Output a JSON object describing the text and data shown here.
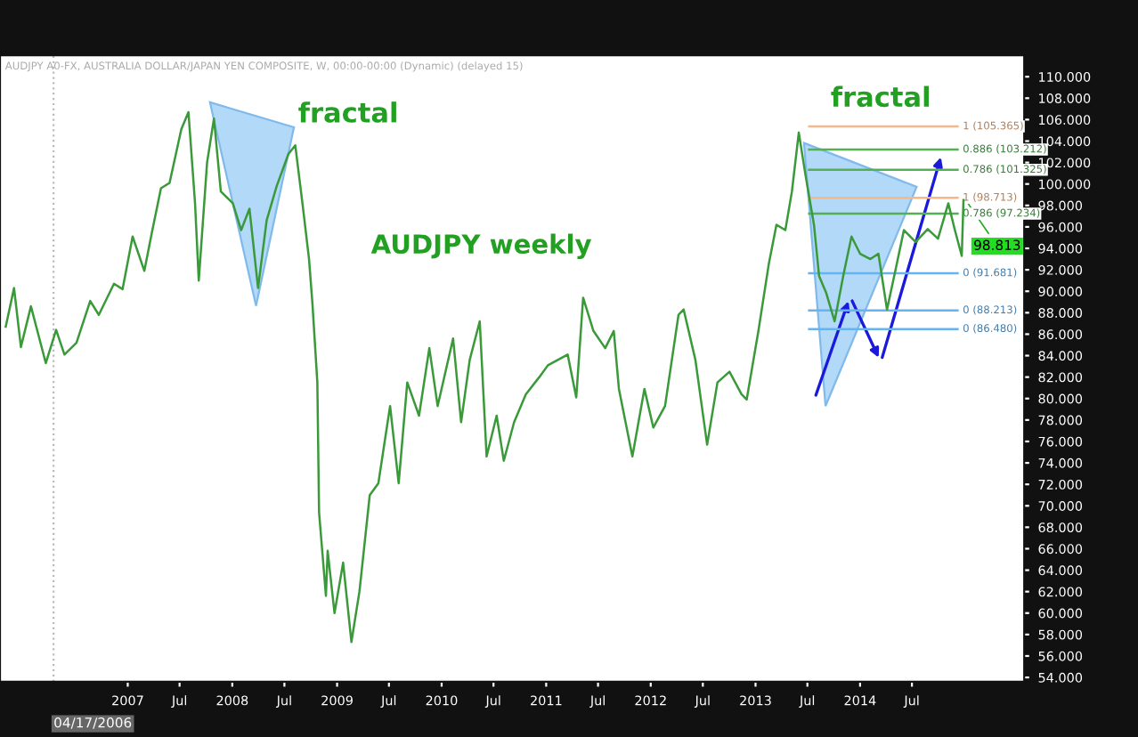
{
  "chart_data": {
    "type": "line",
    "title": "AUDJPY weekly",
    "subtitle": "AUDJPY A0-FX, AUSTRALIA DOLLAR/JAPAN YEN COMPOSITE, W, 00:00-00:00 (Dynamic) (delayed 15)",
    "annotations": [
      "fractal",
      "fractal",
      {
        "text": "98.813",
        "x": "2014-12-28",
        "y": 98.813
      }
    ],
    "x": [
      "2005-11-01",
      "2005-11-30",
      "2005-12-24",
      "2006-01-28",
      "2006-03-21",
      "2006-04-26",
      "2006-05-25",
      "2006-07-06",
      "2006-08-23",
      "2006-09-22",
      "2006-11-14",
      "2006-12-14",
      "2007-01-18",
      "2007-02-28",
      "2007-03-28",
      "2007-04-27",
      "2007-05-27",
      "2007-07-07",
      "2007-08-01",
      "2007-08-24",
      "2007-09-06",
      "2007-10-05",
      "2007-10-29",
      "2007-11-22",
      "2008-01-03",
      "2008-02-01",
      "2008-03-01",
      "2008-03-31",
      "2008-04-30",
      "2008-06-04",
      "2008-07-15",
      "2008-08-08",
      "2008-09-02",
      "2008-09-25",
      "2008-10-07",
      "2008-10-24",
      "2008-10-30",
      "2008-11-23",
      "2008-11-29",
      "2008-12-23",
      "2009-01-22",
      "2009-02-20",
      "2009-03-20",
      "2009-04-25",
      "2009-05-25",
      "2009-07-05",
      "2009-08-04",
      "2009-09-03",
      "2009-10-14",
      "2009-11-19",
      "2009-12-18",
      "2010-02-10",
      "2010-03-10",
      "2010-04-09",
      "2010-05-14",
      "2010-06-07",
      "2010-07-12",
      "2010-08-06",
      "2010-09-11",
      "2010-10-22",
      "2010-12-08",
      "2011-01-07",
      "2011-03-17",
      "2011-04-16",
      "2011-05-10",
      "2011-06-15",
      "2011-07-26",
      "2011-08-25",
      "2011-09-12",
      "2011-10-29",
      "2011-12-10",
      "2012-01-10",
      "2012-02-20",
      "2012-04-07",
      "2012-04-25",
      "2012-06-05",
      "2012-07-16",
      "2012-08-21",
      "2012-10-02",
      "2012-11-13",
      "2012-12-01",
      "2013-01-11",
      "2013-02-16",
      "2013-03-15",
      "2013-04-15",
      "2013-05-08",
      "2013-06-01",
      "2013-06-24",
      "2013-07-24",
      "2013-08-11",
      "2013-09-04",
      "2013-10-04",
      "2013-11-03",
      "2013-12-02",
      "2014-01-01",
      "2014-02-06",
      "2014-03-06",
      "2014-04-05",
      "2014-05-04",
      "2014-06-03",
      "2014-07-14",
      "2014-08-25",
      "2014-09-30",
      "2014-11-05",
      "2014-11-28",
      "2014-12-22",
      "2014-12-28"
    ],
    "series": [
      {
        "color": "#3a9a3a",
        "values": [
          86.7,
          90.3,
          84.8,
          88.6,
          83.3,
          86.4,
          84.1,
          85.2,
          89.1,
          87.8,
          90.7,
          90.2,
          95.1,
          91.9,
          95.7,
          99.6,
          100.1,
          105.1,
          106.7,
          98.2,
          91.0,
          102.0,
          106.1,
          99.3,
          98.2,
          95.7,
          97.7,
          90.3,
          96.6,
          99.8,
          102.8,
          103.6,
          98.2,
          93.0,
          88.8,
          81.5,
          69.4,
          61.6,
          65.8,
          60.0,
          64.7,
          57.3,
          62.0,
          71.0,
          72.1,
          79.3,
          72.1,
          81.5,
          78.4,
          84.7,
          79.3,
          85.6,
          77.8,
          83.6,
          87.2,
          74.6,
          78.4,
          74.2,
          77.8,
          80.4,
          82.0,
          83.1,
          84.1,
          80.1,
          89.4,
          86.3,
          84.7,
          86.3,
          80.9,
          74.6,
          80.9,
          77.3,
          79.3,
          87.8,
          88.3,
          83.6,
          75.7,
          81.5,
          82.5,
          80.4,
          79.9,
          86.3,
          92.5,
          96.2,
          95.7,
          99.3,
          104.8,
          100.9,
          96.2,
          91.4,
          89.9,
          87.2,
          91.4,
          95.1,
          93.5,
          93.0,
          93.5,
          88.3,
          91.9,
          95.7,
          94.6,
          95.8,
          94.9,
          98.2,
          95.7,
          93.3,
          98.5
        ]
      }
    ],
    "xlim": [
      "2005-10-12",
      "2015-07-28"
    ],
    "xticks": [
      {
        "value": "2007-01-01",
        "label": "2007"
      },
      {
        "value": "2007-07-01",
        "label": "Jul"
      },
      {
        "value": "2008-01-01",
        "label": "2008"
      },
      {
        "value": "2008-07-01",
        "label": "Jul"
      },
      {
        "value": "2009-01-01",
        "label": "2009"
      },
      {
        "value": "2009-07-01",
        "label": "Jul"
      },
      {
        "value": "2010-01-01",
        "label": "2010"
      },
      {
        "value": "2010-07-01",
        "label": "Jul"
      },
      {
        "value": "2011-01-01",
        "label": "2011"
      },
      {
        "value": "2011-07-01",
        "label": "Jul"
      },
      {
        "value": "2012-01-01",
        "label": "2012"
      },
      {
        "value": "2012-07-01",
        "label": "Jul"
      },
      {
        "value": "2013-01-01",
        "label": "2013"
      },
      {
        "value": "2013-07-01",
        "label": "Jul"
      },
      {
        "value": "2014-01-01",
        "label": "2014"
      },
      {
        "value": "2014-07-01",
        "label": "Jul"
      }
    ],
    "ylim": [
      53.6,
      112
    ],
    "yticks": [
      {
        "value": 54,
        "label": "54.000"
      },
      {
        "value": 56,
        "label": "56.000"
      },
      {
        "value": 58,
        "label": "58.000"
      },
      {
        "value": 60,
        "label": "60.000"
      },
      {
        "value": 62,
        "label": "62.000"
      },
      {
        "value": 64,
        "label": "64.000"
      },
      {
        "value": 66,
        "label": "66.000"
      },
      {
        "value": 68,
        "label": "68.000"
      },
      {
        "value": 70,
        "label": "70.000"
      },
      {
        "value": 72,
        "label": "72.000"
      },
      {
        "value": 74,
        "label": "74.000"
      },
      {
        "value": 76,
        "label": "76.000"
      },
      {
        "value": 78,
        "label": "78.000"
      },
      {
        "value": 80,
        "label": "80.000"
      },
      {
        "value": 82,
        "label": "82.000"
      },
      {
        "value": 84,
        "label": "84.000"
      },
      {
        "value": 86,
        "label": "86.000"
      },
      {
        "value": 88,
        "label": "88.000"
      },
      {
        "value": 90,
        "label": "90.000"
      },
      {
        "value": 92,
        "label": "92.000"
      },
      {
        "value": 94,
        "label": "94.000"
      },
      {
        "value": 96,
        "label": "96.000"
      },
      {
        "value": 98,
        "label": "98.000"
      },
      {
        "value": 100,
        "label": "100.000"
      },
      {
        "value": 102,
        "label": "102.000"
      },
      {
        "value": 104,
        "label": "104.000"
      },
      {
        "value": 106,
        "label": "106.000"
      },
      {
        "value": 108,
        "label": "108.000"
      },
      {
        "value": 110,
        "label": "110.000"
      }
    ],
    "ref_lines": [
      {
        "axis": "x",
        "value": "2006-04-17",
        "label": "04/17/2006",
        "color": "#bbbbbb",
        "line_style": "dotted"
      },
      {
        "axis": "y",
        "value": 105.365,
        "label": "1 (105.365)",
        "color": "#f5b88a"
      },
      {
        "axis": "y",
        "value": 103.212,
        "label": "0.886 (103.212)",
        "color": "#55b055"
      },
      {
        "axis": "y",
        "value": 101.325,
        "label": "0.786 (101.325)",
        "color": "#55b055"
      },
      {
        "axis": "y",
        "value": 98.713,
        "label": "1 (98.713)",
        "color": "#f5b88a"
      },
      {
        "axis": "y",
        "value": 97.234,
        "label": "0.786 (97.234)",
        "color": "#55b055"
      },
      {
        "axis": "y",
        "value": 91.681,
        "label": "0 (91.681)",
        "color": "#66b3f0"
      },
      {
        "axis": "y",
        "value": 88.213,
        "label": "0 (88.213)",
        "color": "#66b3f0"
      },
      {
        "axis": "y",
        "value": 86.48,
        "label": "0 (86.480)",
        "color": "#66b3f0"
      }
    ],
    "grid": false,
    "legend": false
  }
}
